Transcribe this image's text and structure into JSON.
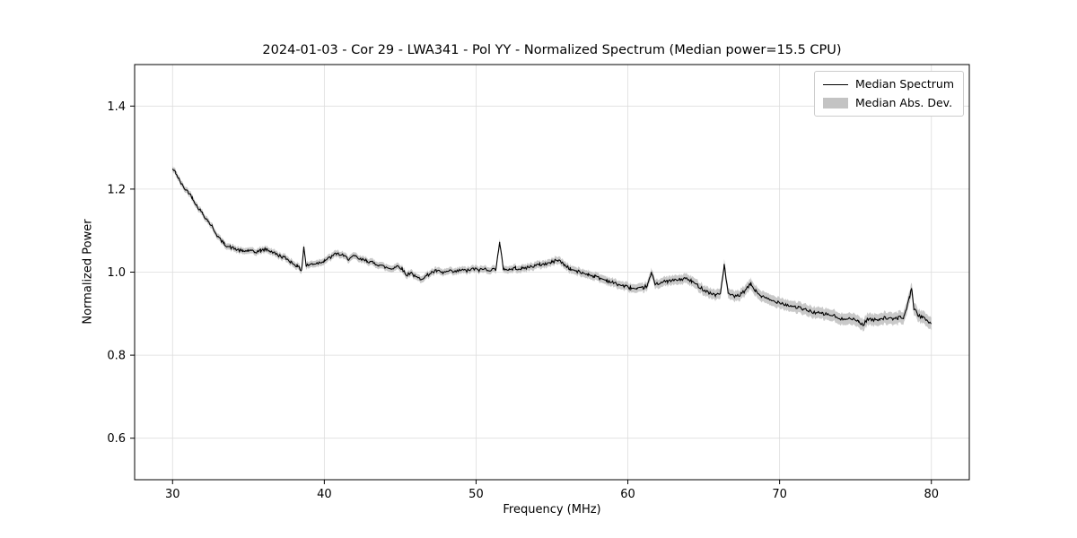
{
  "chart_data": {
    "type": "line",
    "title": "2024-01-03 - Cor 29 - LWA341 - Pol YY - Normalized Spectrum (Median power=15.5 CPU)",
    "xlabel": "Frequency (MHz)",
    "ylabel": "Normalized Power",
    "xlim": [
      27.5,
      82.5
    ],
    "ylim": [
      0.5,
      1.5
    ],
    "xticks": [
      30,
      40,
      50,
      60,
      70,
      80
    ],
    "xtick_labels": [
      "30",
      "40",
      "50",
      "60",
      "70",
      "80"
    ],
    "yticks": [
      0.6,
      0.8,
      1.0,
      1.2,
      1.4
    ],
    "ytick_labels": [
      "0.6",
      "0.8",
      "1.0",
      "1.2",
      "1.4"
    ],
    "grid": true,
    "line_color": "#000000",
    "band_color": "#c3c3c3",
    "grid_color": "#dddddd",
    "noise_amplitude": 0.004,
    "legend": {
      "position": "upper right",
      "entries": [
        {
          "label": "Median Spectrum",
          "type": "line",
          "color": "#000000"
        },
        {
          "label": "Median Abs. Dev.",
          "type": "patch",
          "color": "#c3c3c3"
        }
      ]
    },
    "series": [
      {
        "name": "Median Spectrum",
        "keypoints": [
          [
            30.0,
            1.248
          ],
          [
            30.2,
            1.24
          ],
          [
            30.4,
            1.225
          ],
          [
            30.7,
            1.205
          ],
          [
            31.0,
            1.195
          ],
          [
            31.3,
            1.18
          ],
          [
            31.6,
            1.16
          ],
          [
            32.0,
            1.14
          ],
          [
            32.3,
            1.125
          ],
          [
            32.6,
            1.11
          ],
          [
            33.0,
            1.085
          ],
          [
            33.4,
            1.068
          ],
          [
            33.8,
            1.06
          ],
          [
            34.2,
            1.055
          ],
          [
            34.6,
            1.05
          ],
          [
            35.0,
            1.052
          ],
          [
            35.4,
            1.048
          ],
          [
            35.8,
            1.052
          ],
          [
            36.2,
            1.055
          ],
          [
            36.6,
            1.048
          ],
          [
            37.0,
            1.04
          ],
          [
            37.4,
            1.035
          ],
          [
            37.8,
            1.025
          ],
          [
            38.2,
            1.015
          ],
          [
            38.5,
            1.005
          ],
          [
            38.65,
            1.062
          ],
          [
            38.8,
            1.015
          ],
          [
            39.2,
            1.02
          ],
          [
            39.6,
            1.022
          ],
          [
            40.0,
            1.028
          ],
          [
            40.4,
            1.035
          ],
          [
            40.8,
            1.045
          ],
          [
            41.2,
            1.04
          ],
          [
            41.6,
            1.032
          ],
          [
            42.0,
            1.038
          ],
          [
            42.4,
            1.03
          ],
          [
            42.8,
            1.028
          ],
          [
            43.2,
            1.022
          ],
          [
            43.6,
            1.018
          ],
          [
            44.0,
            1.012
          ],
          [
            44.4,
            1.008
          ],
          [
            44.8,
            1.015
          ],
          [
            45.1,
            1.01
          ],
          [
            45.4,
            0.992
          ],
          [
            45.7,
            1.0
          ],
          [
            46.0,
            0.988
          ],
          [
            46.3,
            0.984
          ],
          [
            46.7,
            0.99
          ],
          [
            47.0,
            0.998
          ],
          [
            47.4,
            1.003
          ],
          [
            47.8,
            0.998
          ],
          [
            48.2,
            1.002
          ],
          [
            48.6,
            1.0
          ],
          [
            49.0,
            1.005
          ],
          [
            49.4,
            1.003
          ],
          [
            49.8,
            1.008
          ],
          [
            50.2,
            1.005
          ],
          [
            50.6,
            1.008
          ],
          [
            51.0,
            1.005
          ],
          [
            51.3,
            1.008
          ],
          [
            51.55,
            1.07
          ],
          [
            51.8,
            1.008
          ],
          [
            52.2,
            1.006
          ],
          [
            52.6,
            1.01
          ],
          [
            53.0,
            1.008
          ],
          [
            53.4,
            1.012
          ],
          [
            53.8,
            1.015
          ],
          [
            54.2,
            1.018
          ],
          [
            54.6,
            1.02
          ],
          [
            55.0,
            1.024
          ],
          [
            55.4,
            1.03
          ],
          [
            55.8,
            1.018
          ],
          [
            56.2,
            1.008
          ],
          [
            56.6,
            1.002
          ],
          [
            57.0,
            0.998
          ],
          [
            57.4,
            0.995
          ],
          [
            57.8,
            0.99
          ],
          [
            58.2,
            0.985
          ],
          [
            58.6,
            0.98
          ],
          [
            59.0,
            0.975
          ],
          [
            59.4,
            0.97
          ],
          [
            59.8,
            0.966
          ],
          [
            60.2,
            0.962
          ],
          [
            60.6,
            0.958
          ],
          [
            61.0,
            0.962
          ],
          [
            61.3,
            0.968
          ],
          [
            61.55,
            0.998
          ],
          [
            61.8,
            0.972
          ],
          [
            62.2,
            0.975
          ],
          [
            62.6,
            0.978
          ],
          [
            63.0,
            0.98
          ],
          [
            63.4,
            0.982
          ],
          [
            63.8,
            0.985
          ],
          [
            64.2,
            0.978
          ],
          [
            64.6,
            0.968
          ],
          [
            65.0,
            0.958
          ],
          [
            65.4,
            0.95
          ],
          [
            65.8,
            0.945
          ],
          [
            66.1,
            0.948
          ],
          [
            66.35,
            1.018
          ],
          [
            66.6,
            0.95
          ],
          [
            67.0,
            0.94
          ],
          [
            67.4,
            0.945
          ],
          [
            67.8,
            0.958
          ],
          [
            68.1,
            0.972
          ],
          [
            68.4,
            0.955
          ],
          [
            68.8,
            0.942
          ],
          [
            69.2,
            0.935
          ],
          [
            69.6,
            0.93
          ],
          [
            70.0,
            0.928
          ],
          [
            70.4,
            0.922
          ],
          [
            70.8,
            0.918
          ],
          [
            71.2,
            0.915
          ],
          [
            71.6,
            0.91
          ],
          [
            72.0,
            0.906
          ],
          [
            72.4,
            0.902
          ],
          [
            72.8,
            0.9
          ],
          [
            73.2,
            0.898
          ],
          [
            73.6,
            0.895
          ],
          [
            74.0,
            0.885
          ],
          [
            74.4,
            0.89
          ],
          [
            74.8,
            0.886
          ],
          [
            75.2,
            0.882
          ],
          [
            75.5,
            0.872
          ],
          [
            75.8,
            0.888
          ],
          [
            76.2,
            0.884
          ],
          [
            76.6,
            0.888
          ],
          [
            77.0,
            0.89
          ],
          [
            77.4,
            0.886
          ],
          [
            77.8,
            0.89
          ],
          [
            78.2,
            0.892
          ],
          [
            78.55,
            0.938
          ],
          [
            78.7,
            0.962
          ],
          [
            78.85,
            0.912
          ],
          [
            79.1,
            0.898
          ],
          [
            79.4,
            0.89
          ],
          [
            79.7,
            0.886
          ],
          [
            80.0,
            0.875
          ]
        ]
      }
    ],
    "mad_halfwidth_keypoints": [
      [
        30,
        0.007
      ],
      [
        40,
        0.008
      ],
      [
        50,
        0.008
      ],
      [
        60,
        0.01
      ],
      [
        65,
        0.012
      ],
      [
        70,
        0.013
      ],
      [
        75,
        0.014
      ],
      [
        80,
        0.015
      ]
    ]
  }
}
